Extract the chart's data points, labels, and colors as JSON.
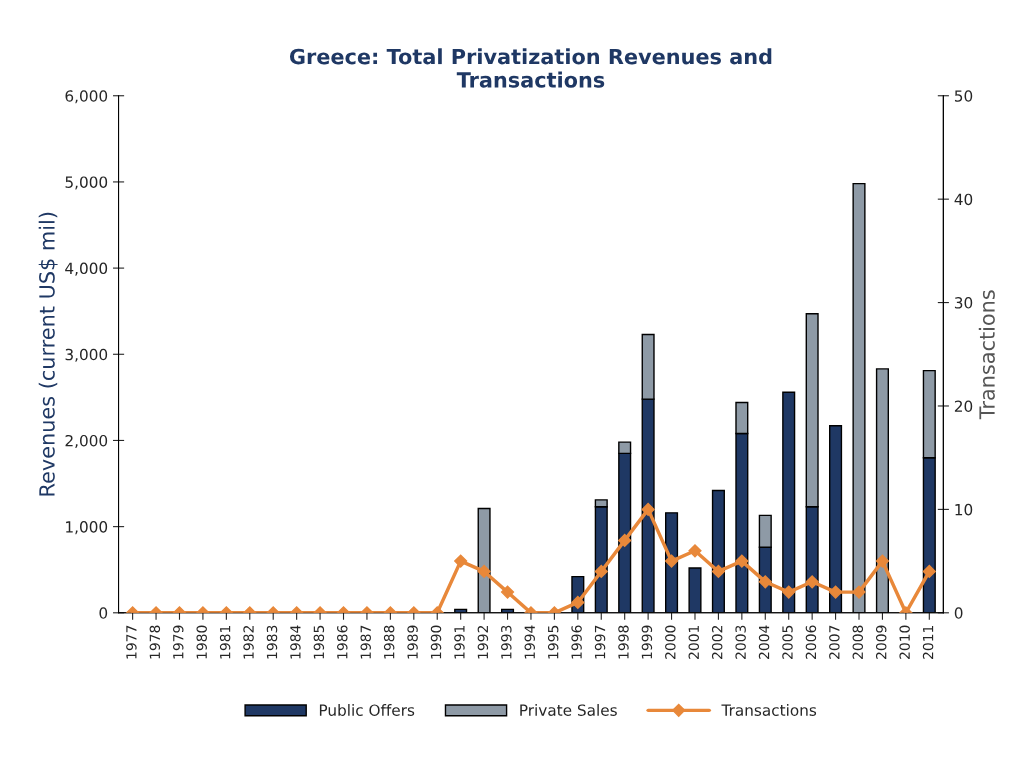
{
  "chart_data": {
    "type": "bar",
    "title": "Greece: Total Privatization Revenues and\nTransactions",
    "ylabel": "Revenues (current US$ mil)",
    "y2label": "Transactions",
    "categories": [
      "1977",
      "1978",
      "1979",
      "1980",
      "1981",
      "1982",
      "1983",
      "1984",
      "1985",
      "1986",
      "1987",
      "1988",
      "1989",
      "1990",
      "1991",
      "1992",
      "1993",
      "1994",
      "1995",
      "1996",
      "1997",
      "1998",
      "1999",
      "2000",
      "2001",
      "2002",
      "2003",
      "2004",
      "2005",
      "2006",
      "2007",
      "2008",
      "2009",
      "2010",
      "2011"
    ],
    "stacked": true,
    "series": [
      {
        "name": "Public Offers",
        "color": "#1f3864",
        "values": [
          0,
          0,
          0,
          0,
          0,
          0,
          0,
          0,
          0,
          0,
          0,
          0,
          0,
          0,
          40,
          0,
          40,
          0,
          0,
          420,
          1230,
          1850,
          2480,
          1160,
          520,
          1420,
          2080,
          760,
          2560,
          1230,
          2170,
          0,
          0,
          0,
          1800
        ]
      },
      {
        "name": "Private Sales",
        "color": "#8e9aa6",
        "values": [
          0,
          0,
          0,
          0,
          0,
          0,
          0,
          0,
          0,
          0,
          0,
          0,
          0,
          0,
          0,
          1210,
          0,
          0,
          0,
          0,
          80,
          130,
          750,
          0,
          0,
          0,
          360,
          370,
          0,
          2240,
          0,
          4980,
          2830,
          0,
          1010
        ]
      },
      {
        "name": "Transactions",
        "type": "line",
        "axis": "y2",
        "color": "#e8883a",
        "marker": "diamond",
        "values": [
          0,
          0,
          0,
          0,
          0,
          0,
          0,
          0,
          0,
          0,
          0,
          0,
          0,
          0,
          5,
          4,
          2,
          0,
          0,
          1,
          4,
          7,
          10,
          5,
          6,
          4,
          5,
          3,
          2,
          3,
          2,
          2,
          5,
          0,
          4
        ]
      }
    ],
    "ylim": [
      0,
      6000
    ],
    "yticks": [
      {
        "value": 0,
        "label": "0"
      },
      {
        "value": 1000,
        "label": "1,000"
      },
      {
        "value": 2000,
        "label": "2,000"
      },
      {
        "value": 3000,
        "label": "3,000"
      },
      {
        "value": 4000,
        "label": "4,000"
      },
      {
        "value": 5000,
        "label": "5,000"
      },
      {
        "value": 6000,
        "label": "6,000"
      }
    ],
    "y2lim": [
      0,
      50
    ],
    "y2ticks": [
      0,
      10,
      20,
      30,
      40,
      50
    ],
    "grid": false,
    "legend": "bottom"
  }
}
